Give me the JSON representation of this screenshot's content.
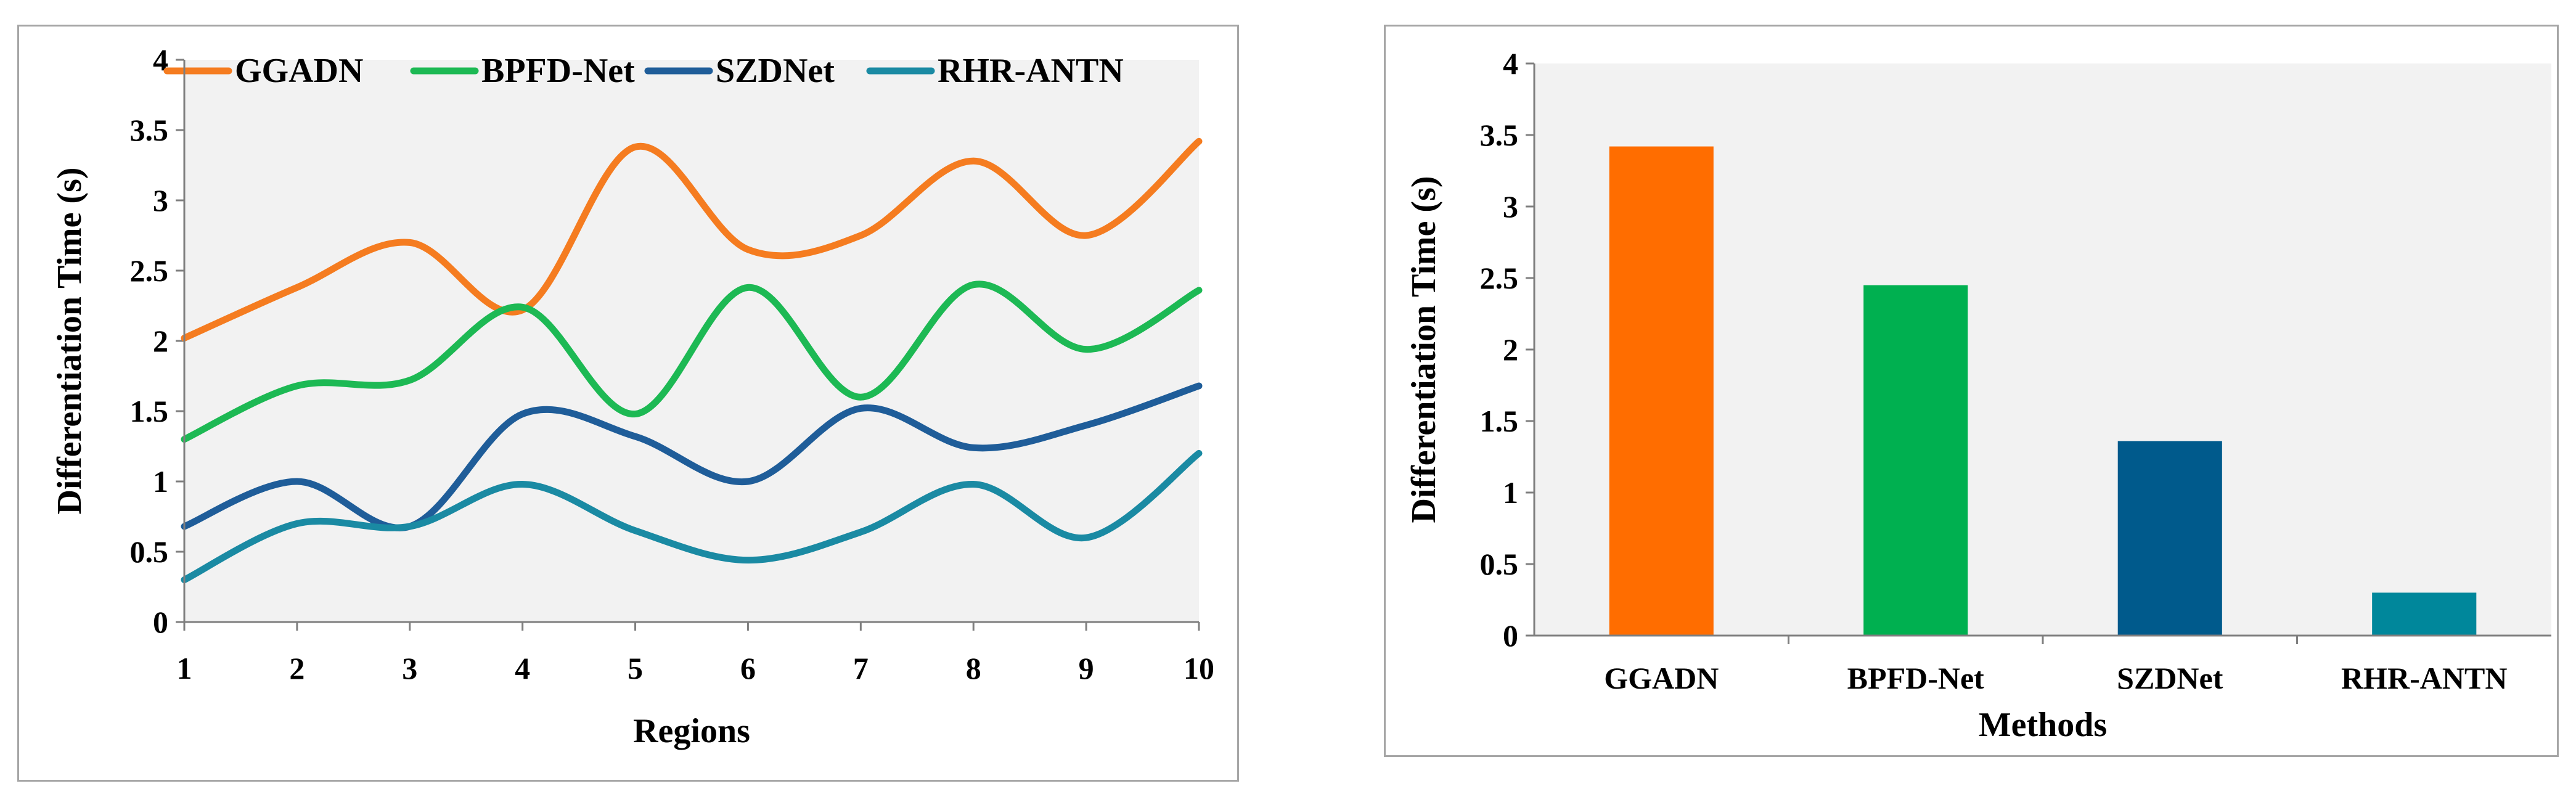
{
  "chart_data": [
    {
      "type": "line",
      "title": "",
      "xlabel": "Regions",
      "ylabel": "Differentiation Time (s)",
      "x": [
        1,
        2,
        3,
        4,
        5,
        6,
        7,
        8,
        9,
        10
      ],
      "x_tick_labels": [
        "1",
        "2",
        "3",
        "4",
        "5",
        "6",
        "7",
        "8",
        "9",
        "10"
      ],
      "ylim": [
        0,
        4
      ],
      "y_tick_labels": [
        "0",
        "0.5",
        "1",
        "1.5",
        "2",
        "2.5",
        "3",
        "3.5",
        "4"
      ],
      "smooth": true,
      "grid": false,
      "legend_position": "top",
      "series": [
        {
          "name": "GGADN",
          "color": "#f57c20",
          "values": [
            2.02,
            2.38,
            2.7,
            2.22,
            3.38,
            2.65,
            2.75,
            3.28,
            2.75,
            3.42
          ]
        },
        {
          "name": "BPFD-Net",
          "color": "#1db954",
          "values": [
            1.3,
            1.68,
            1.72,
            2.24,
            1.48,
            2.38,
            1.6,
            2.4,
            1.94,
            2.36
          ]
        },
        {
          "name": "SZDNet",
          "color": "#1f5d99",
          "values": [
            0.68,
            1.0,
            0.68,
            1.48,
            1.32,
            1.0,
            1.52,
            1.24,
            1.4,
            1.68
          ]
        },
        {
          "name": "RHR-ANTN",
          "color": "#1a8aa3",
          "values": [
            0.3,
            0.7,
            0.68,
            0.98,
            0.65,
            0.44,
            0.64,
            0.98,
            0.6,
            1.2
          ]
        }
      ]
    },
    {
      "type": "bar",
      "title": "",
      "xlabel": "Methods",
      "ylabel": "Differentiation Time (s)",
      "categories": [
        "GGADN",
        "BPFD-Net",
        "SZDNet",
        "RHR-ANTN"
      ],
      "values": [
        3.42,
        2.45,
        1.36,
        0.3
      ],
      "colors": [
        "#ff6d00",
        "#00b050",
        "#005a8c",
        "#00879b"
      ],
      "ylim": [
        0,
        4
      ],
      "y_tick_labels": [
        "0",
        "0.5",
        "1",
        "1.5",
        "2",
        "2.5",
        "3",
        "3.5",
        "4"
      ],
      "grid": false
    }
  ]
}
